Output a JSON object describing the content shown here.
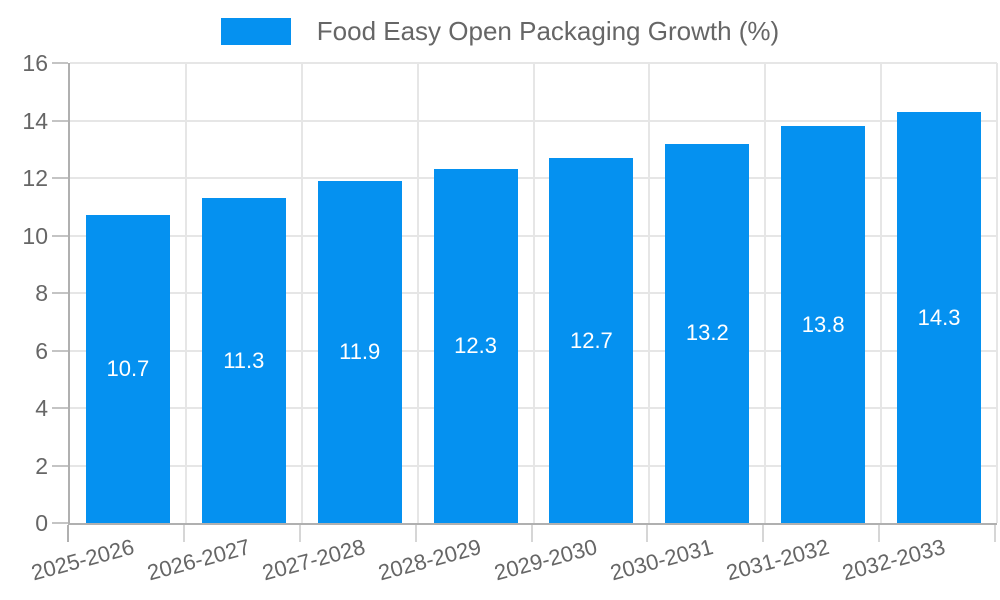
{
  "chart_data": {
    "type": "bar",
    "title": "Food Easy Open Packaging Growth (%)",
    "categories": [
      "2025-2026",
      "2026-2027",
      "2027-2028",
      "2028-2029",
      "2029-2030",
      "2030-2031",
      "2031-2032",
      "2032-2033"
    ],
    "values": [
      10.7,
      11.3,
      11.9,
      12.3,
      12.7,
      13.2,
      13.8,
      14.3
    ],
    "value_labels": [
      "10.7",
      "11.3",
      "11.9",
      "12.3",
      "12.7",
      "13.2",
      "13.8",
      "14.3"
    ],
    "xlabel": "",
    "ylabel": "",
    "ylim": [
      0,
      16
    ],
    "ytick_step": 2,
    "ytick_labels": [
      "0",
      "2",
      "4",
      "6",
      "8",
      "10",
      "12",
      "14",
      "16"
    ],
    "grid": true,
    "legend_position": "top-center",
    "bar_color": "#0591F0",
    "value_label_color": "#ffffff",
    "axis_color": "#b0b0b0",
    "grid_color": "#e6e6e6",
    "tick_text_color": "#666666"
  }
}
